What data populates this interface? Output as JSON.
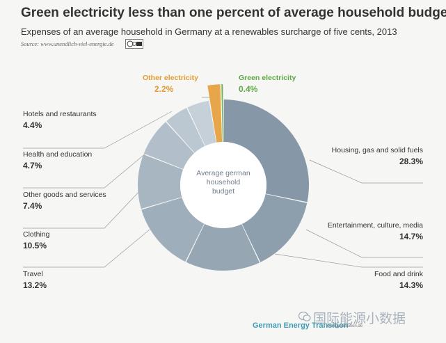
{
  "header": {
    "title": "Green electricity less than one percent of average household budget",
    "subtitle": "Expenses of an average household in Germany at a renewables surcharge of five cents, 2013",
    "source": "Source: www.unendlich-viel-energie.de"
  },
  "chart_data": {
    "type": "pie",
    "center_label": "Average german household budget",
    "slices": [
      {
        "label": "Housing, gas and solid fuels",
        "value": 28.3,
        "value_text": "28.3%",
        "color": "#8698a7"
      },
      {
        "label": "Entertainment, culture, media",
        "value": 14.7,
        "value_text": "14.7%",
        "color": "#8d9eac"
      },
      {
        "label": "Food and drink",
        "value": 14.3,
        "value_text": "14.3%",
        "color": "#96a6b3"
      },
      {
        "label": "Travel",
        "value": 13.2,
        "value_text": "13.2%",
        "color": "#9faebb"
      },
      {
        "label": "Clothing",
        "value": 10.5,
        "value_text": "10.5%",
        "color": "#a8b6c2"
      },
      {
        "label": "Other goods and services",
        "value": 7.4,
        "value_text": "7.4%",
        "color": "#b2bfca"
      },
      {
        "label": "Health and education",
        "value": 4.7,
        "value_text": "4.7%",
        "color": "#bcc8d1"
      },
      {
        "label": "Hotels and restaurants",
        "value": 4.4,
        "value_text": "4.4%",
        "color": "#c6d0d8"
      },
      {
        "label": "Other electricity",
        "value": 2.2,
        "value_text": "2.2%",
        "color": "#e7a64a",
        "highlight": true
      },
      {
        "label": "Green electricity",
        "value": 0.4,
        "value_text": "0.4%",
        "color": "#6fb34f",
        "highlight": true
      }
    ]
  },
  "footer": {
    "brand": "German Energy Transition",
    "url": "energytransition.de",
    "watermark": "国际能源小数据"
  },
  "colors": {
    "other_electricity": "#e39b33",
    "green_electricity": "#5fa843",
    "brand": "#3d9db5"
  }
}
